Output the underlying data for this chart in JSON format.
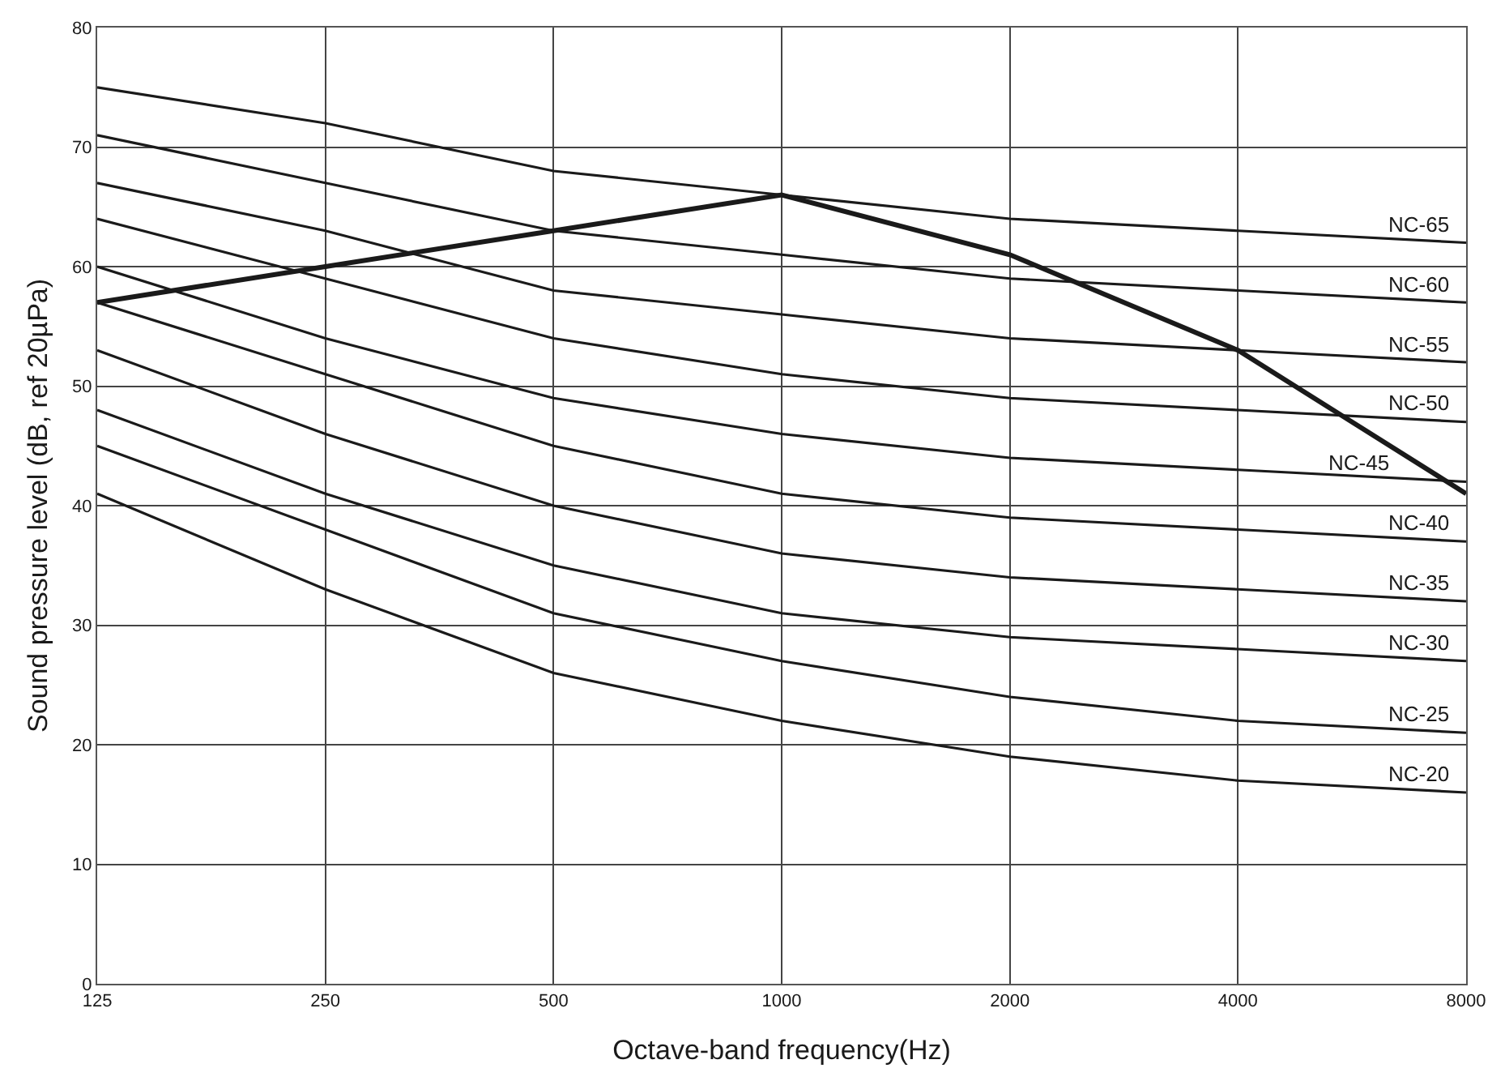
{
  "chart_data": {
    "type": "line",
    "xlabel": "Octave-band frequency(Hz)",
    "ylabel": "Sound pressure level (dB, ref 20µPa)",
    "x": [
      125,
      250,
      500,
      1000,
      2000,
      4000,
      8000
    ],
    "log": "x",
    "xlim": [
      125,
      8000
    ],
    "xticks": [
      125,
      250,
      500,
      1000,
      2000,
      4000,
      8000
    ],
    "ylim": [
      0,
      80
    ],
    "yticks": [
      0,
      10,
      20,
      30,
      40,
      50,
      60,
      70,
      80
    ],
    "grid": true,
    "legend": false,
    "marker": "none",
    "line_style": "solid",
    "series": [
      {
        "name": "NC-65",
        "color": "#1a1a1a",
        "values": [
          75,
          72,
          68,
          66,
          64,
          63,
          62
        ]
      },
      {
        "name": "NC-60",
        "color": "#1a1a1a",
        "values": [
          71,
          67,
          63,
          61,
          59,
          58,
          57
        ]
      },
      {
        "name": "NC-55",
        "color": "#1a1a1a",
        "values": [
          67,
          63,
          58,
          56,
          54,
          53,
          52
        ]
      },
      {
        "name": "NC-50",
        "color": "#1a1a1a",
        "values": [
          64,
          59,
          54,
          51,
          49,
          48,
          47
        ]
      },
      {
        "name": "NC-45",
        "color": "#1a1a1a",
        "values": [
          60,
          54,
          49,
          46,
          44,
          43,
          42
        ]
      },
      {
        "name": "NC-40",
        "color": "#1a1a1a",
        "values": [
          57,
          51,
          45,
          41,
          39,
          38,
          37
        ]
      },
      {
        "name": "NC-35",
        "color": "#1a1a1a",
        "values": [
          53,
          46,
          40,
          36,
          34,
          33,
          32
        ]
      },
      {
        "name": "NC-30",
        "color": "#1a1a1a",
        "values": [
          48,
          41,
          35,
          31,
          29,
          28,
          27
        ]
      },
      {
        "name": "NC-25",
        "color": "#1a1a1a",
        "values": [
          45,
          38,
          31,
          27,
          24,
          22,
          21
        ]
      },
      {
        "name": "NC-20",
        "color": "#1a1a1a",
        "values": [
          41,
          33,
          26,
          22,
          19,
          17,
          16
        ]
      },
      {
        "color": "#1a1a1a",
        "values": [
          57,
          60,
          63,
          66,
          61,
          53,
          41
        ]
      }
    ]
  }
}
